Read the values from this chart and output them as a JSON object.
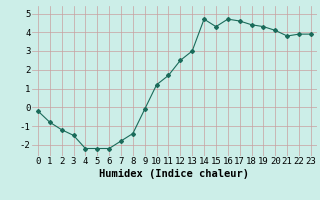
{
  "x": [
    0,
    1,
    2,
    3,
    4,
    5,
    6,
    7,
    8,
    9,
    10,
    11,
    12,
    13,
    14,
    15,
    16,
    17,
    18,
    19,
    20,
    21,
    22,
    23
  ],
  "y": [
    -0.2,
    -0.8,
    -1.2,
    -1.5,
    -2.2,
    -2.2,
    -2.2,
    -1.8,
    -1.4,
    -0.1,
    1.2,
    1.7,
    2.5,
    3.0,
    4.7,
    4.3,
    4.7,
    4.6,
    4.4,
    4.3,
    4.1,
    3.8,
    3.9,
    3.9
  ],
  "line_color": "#1a6b5a",
  "marker": "D",
  "marker_size": 2.0,
  "bg_color": "#cceee8",
  "grid_color": "#c8a0a0",
  "xlabel": "Humidex (Indice chaleur)",
  "xlim": [
    -0.5,
    23.5
  ],
  "ylim": [
    -2.6,
    5.4
  ],
  "yticks": [
    -2,
    -1,
    0,
    1,
    2,
    3,
    4,
    5
  ],
  "xticks": [
    0,
    1,
    2,
    3,
    4,
    5,
    6,
    7,
    8,
    9,
    10,
    11,
    12,
    13,
    14,
    15,
    16,
    17,
    18,
    19,
    20,
    21,
    22,
    23
  ],
  "tick_fontsize": 6.5,
  "xlabel_fontsize": 7.5
}
